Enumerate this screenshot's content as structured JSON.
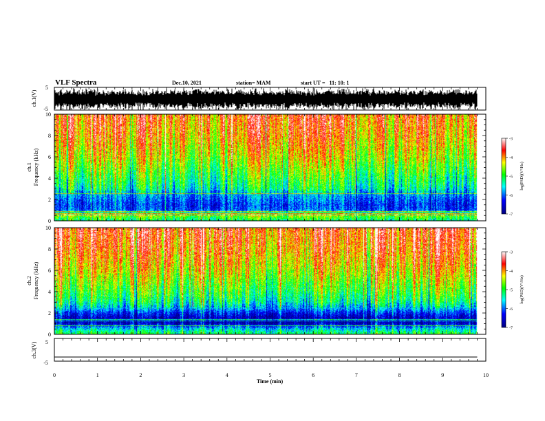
{
  "header": {
    "title": "VLF Spectra",
    "date": "Dec.10, 2021",
    "station": "station= MAM",
    "start": "start UT =   11: 10: 1"
  },
  "chart_data": [
    {
      "type": "line",
      "name": "waveform-ch1",
      "ylabel": "ch.1(V)",
      "ylim": [
        -5,
        5
      ],
      "y_ticks": [
        "5",
        "-5"
      ],
      "xlim": [
        0,
        10
      ],
      "data_extent_min": [
        0,
        9.8
      ]
    },
    {
      "type": "heatmap",
      "name": "spectrogram-ch1",
      "ylabel": "ch.1\nFrequency (kHz)",
      "ylabel_lines": [
        "ch.1",
        "Frequency (kHz)"
      ],
      "ylim": [
        0,
        10
      ],
      "y_ticks": [
        "0",
        "2",
        "4",
        "6",
        "8",
        "10"
      ],
      "xlim": [
        0,
        10
      ],
      "data_extent_min": [
        0,
        9.8
      ],
      "colorbar": {
        "label": "log(PSD)(V²/Hz)",
        "range": [
          -7,
          -3
        ],
        "ticks": [
          "-3",
          "-4",
          "-5",
          "-6",
          "-7"
        ]
      },
      "log_psd_profile": [
        {
          "f_khz": 0.0,
          "log_psd": -5.2
        },
        {
          "f_khz": 0.5,
          "log_psd": -4.6
        },
        {
          "f_khz": 1.0,
          "log_psd": -6.1
        },
        {
          "f_khz": 1.5,
          "log_psd": -6.2
        },
        {
          "f_khz": 2.0,
          "log_psd": -6.0
        },
        {
          "f_khz": 2.5,
          "log_psd": -5.8
        },
        {
          "f_khz": 3.0,
          "log_psd": -5.3
        },
        {
          "f_khz": 4.0,
          "log_psd": -5.0
        },
        {
          "f_khz": 5.0,
          "log_psd": -4.7
        },
        {
          "f_khz": 6.0,
          "log_psd": -4.4
        },
        {
          "f_khz": 7.0,
          "log_psd": -4.2
        },
        {
          "f_khz": 8.0,
          "log_psd": -4.0
        },
        {
          "f_khz": 9.0,
          "log_psd": -3.9
        },
        {
          "f_khz": 10.0,
          "log_psd": -3.8
        }
      ]
    },
    {
      "type": "heatmap",
      "name": "spectrogram-ch2",
      "ylabel": "ch.2\nFrequency (kHz)",
      "ylabel_lines": [
        "ch.2",
        "Frequency (kHz)"
      ],
      "ylim": [
        0,
        10
      ],
      "y_ticks": [
        "0",
        "2",
        "4",
        "6",
        "8",
        "10"
      ],
      "xlim": [
        0,
        10
      ],
      "data_extent_min": [
        0,
        9.8
      ],
      "colorbar": {
        "label": "log(PSD)(V²/Hz)",
        "range": [
          -7,
          -3
        ],
        "ticks": [
          "-3",
          "-4",
          "-5",
          "-6",
          "-7"
        ]
      },
      "log_psd_profile": [
        {
          "f_khz": 0.0,
          "log_psd": -5.0
        },
        {
          "f_khz": 0.5,
          "log_psd": -5.6
        },
        {
          "f_khz": 1.0,
          "log_psd": -6.6
        },
        {
          "f_khz": 1.5,
          "log_psd": -6.6
        },
        {
          "f_khz": 2.0,
          "log_psd": -6.2
        },
        {
          "f_khz": 2.5,
          "log_psd": -5.6
        },
        {
          "f_khz": 3.0,
          "log_psd": -5.2
        },
        {
          "f_khz": 4.0,
          "log_psd": -4.8
        },
        {
          "f_khz": 5.0,
          "log_psd": -4.5
        },
        {
          "f_khz": 6.0,
          "log_psd": -4.2
        },
        {
          "f_khz": 7.0,
          "log_psd": -4.0
        },
        {
          "f_khz": 8.0,
          "log_psd": -3.8
        },
        {
          "f_khz": 9.0,
          "log_psd": -3.7
        },
        {
          "f_khz": 10.0,
          "log_psd": -3.6
        }
      ]
    },
    {
      "type": "line",
      "name": "waveform-ch3",
      "ylabel": "ch.3(V)",
      "ylim": [
        -5,
        5
      ],
      "y_ticks": [
        "5",
        "-5"
      ],
      "xlim": [
        0,
        10
      ],
      "data_extent_min": [
        0,
        9.8
      ],
      "x": [
        0,
        9.8
      ],
      "y": [
        -3.2,
        -3.2
      ]
    }
  ],
  "x_axis": {
    "xlabel": "Time (min)",
    "xlim": [
      0,
      10
    ],
    "ticks": [
      "0",
      "1",
      "2",
      "3",
      "4",
      "5",
      "6",
      "7",
      "8",
      "9",
      "10"
    ]
  },
  "colors": {
    "colormap": [
      "#000080",
      "#0000ff",
      "#00ffff",
      "#00ff00",
      "#ffff00",
      "#ff0000",
      "#ffffff"
    ]
  }
}
